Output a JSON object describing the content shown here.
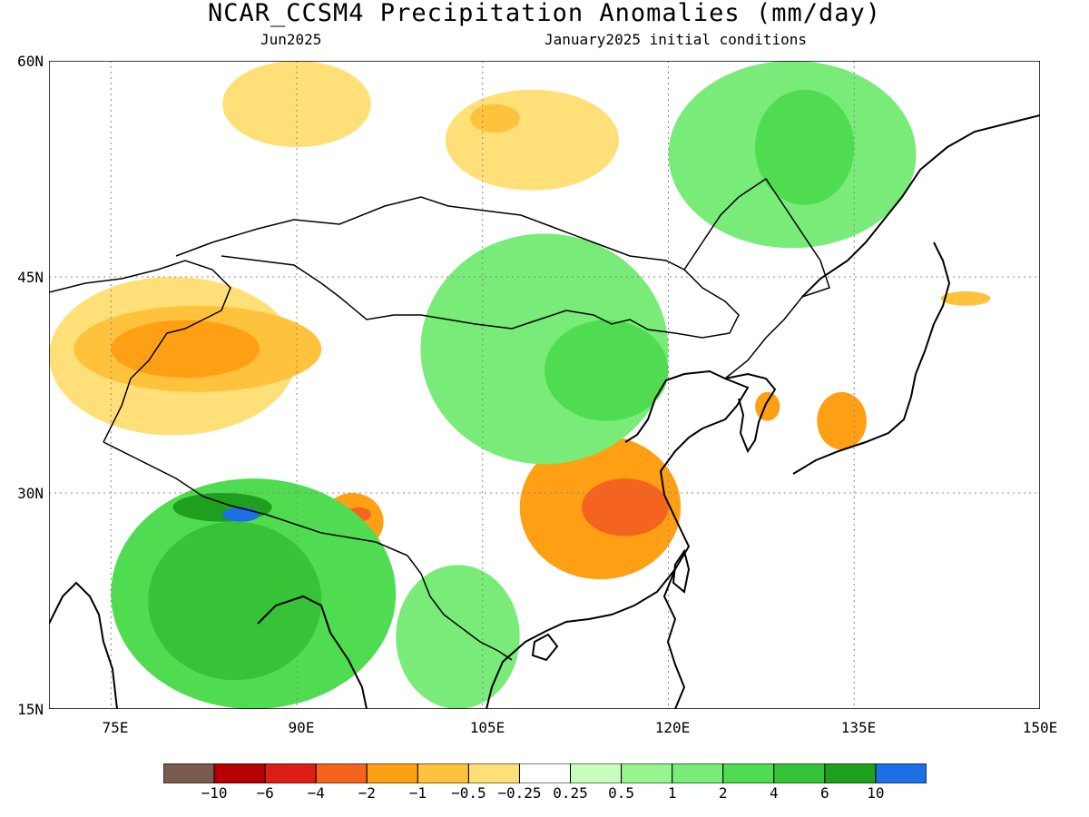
{
  "header": {
    "title": "NCAR_CCSM4 Precipitation Anomalies (mm/day)",
    "valid_month": "Jun2025",
    "init_conditions": "January2025 initial conditions"
  },
  "chart_data": {
    "type": "heatmap",
    "title": "NCAR_CCSM4 Precipitation Anomalies (mm/day)",
    "x_ticks": [
      "75E",
      "90E",
      "105E",
      "120E",
      "135E",
      "150E"
    ],
    "x_tick_values": [
      75,
      90,
      105,
      120,
      135,
      150
    ],
    "y_ticks": [
      "60N",
      "45N",
      "30N",
      "15N"
    ],
    "y_tick_values": [
      60,
      45,
      30,
      15
    ],
    "xlim": [
      70,
      150
    ],
    "ylim": [
      15,
      60
    ],
    "grid": true,
    "legend_placement": "bottom",
    "colorbar": {
      "labels": [
        "-10",
        "-6",
        "-4",
        "-2",
        "-1",
        "-0.5",
        "-0.25",
        "0.25",
        "0.5",
        "1",
        "2",
        "4",
        "6",
        "10"
      ],
      "colors": [
        "#7b5a50",
        "#b40000",
        "#dc1e14",
        "#f5641e",
        "#ffa014",
        "#ffc23c",
        "#ffe078",
        "#ffffff",
        "#c8ffbe",
        "#96f58c",
        "#78eb78",
        "#50dc50",
        "#37c337",
        "#1ea01e",
        "#1e6ee6"
      ]
    },
    "regions": [
      {
        "level": -0.5,
        "lon": [
          70,
          90
        ],
        "lat": [
          34,
          45
        ]
      },
      {
        "level": -1,
        "lon": [
          72,
          92
        ],
        "lat": [
          37,
          43
        ]
      },
      {
        "level": -2,
        "lon": [
          75,
          87
        ],
        "lat": [
          38,
          42
        ]
      },
      {
        "level": -0.5,
        "lon": [
          84,
          96
        ],
        "lat": [
          54,
          60
        ]
      },
      {
        "level": -0.5,
        "lon": [
          102,
          116
        ],
        "lat": [
          51,
          58
        ]
      },
      {
        "level": -1,
        "lon": [
          104,
          108
        ],
        "lat": [
          55,
          57
        ]
      },
      {
        "level": -2,
        "lon": [
          108,
          121
        ],
        "lat": [
          24,
          34
        ]
      },
      {
        "level": -4,
        "lon": [
          113,
          120
        ],
        "lat": [
          27,
          31
        ]
      },
      {
        "level": -2,
        "lon": [
          92,
          97
        ],
        "lat": [
          26,
          30
        ]
      },
      {
        "level": -4,
        "lon": [
          94,
          96
        ],
        "lat": [
          28,
          29
        ]
      },
      {
        "level": -2,
        "lon": [
          127,
          129
        ],
        "lat": [
          35,
          37
        ]
      },
      {
        "level": -2,
        "lon": [
          132,
          136
        ],
        "lat": [
          33,
          37
        ]
      },
      {
        "level": -1,
        "lon": [
          142,
          146
        ],
        "lat": [
          43,
          44
        ]
      },
      {
        "level": 1,
        "lon": [
          100,
          120
        ],
        "lat": [
          32,
          48
        ]
      },
      {
        "level": 2,
        "lon": [
          110,
          120
        ],
        "lat": [
          35,
          42
        ]
      },
      {
        "level": 1,
        "lon": [
          120,
          140
        ],
        "lat": [
          47,
          60
        ]
      },
      {
        "level": 2,
        "lon": [
          127,
          135
        ],
        "lat": [
          50,
          58
        ]
      },
      {
        "level": 2,
        "lon": [
          75,
          98
        ],
        "lat": [
          15,
          31
        ]
      },
      {
        "level": 4,
        "lon": [
          78,
          92
        ],
        "lat": [
          17,
          28
        ]
      },
      {
        "level": 6,
        "lon": [
          80,
          88
        ],
        "lat": [
          28,
          30
        ]
      },
      {
        "level": 10,
        "lon": [
          84,
          87
        ],
        "lat": [
          28,
          29
        ]
      },
      {
        "level": 1,
        "lon": [
          98,
          108
        ],
        "lat": [
          15,
          25
        ]
      }
    ]
  }
}
